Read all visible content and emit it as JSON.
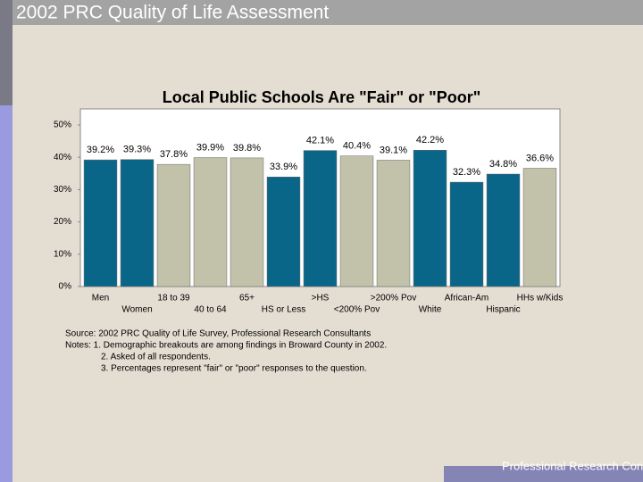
{
  "slide_title": "2002 PRC Quality of Life Assessment",
  "footer": "Professional Research Consultants",
  "chart_data": {
    "type": "bar",
    "title": "Local Public Schools Are \"Fair\" or \"Poor\"",
    "categories": [
      "Men",
      "Women",
      "18 to 39",
      "40 to 64",
      "65+",
      "HS or Less",
      ">HS",
      "<200% Pov",
      ">200% Pov",
      "White",
      "African-Am",
      "Hispanic",
      "HHs w/Kids"
    ],
    "values": [
      39.2,
      39.3,
      37.8,
      39.9,
      39.8,
      33.9,
      42.1,
      40.4,
      39.1,
      42.2,
      32.3,
      34.8,
      36.6
    ],
    "value_labels": [
      "39.2%",
      "39.3%",
      "37.8%",
      "39.9%",
      "39.8%",
      "33.9%",
      "42.1%",
      "40.4%",
      "39.1%",
      "42.2%",
      "32.3%",
      "34.8%",
      "36.6%"
    ],
    "colors": [
      "#0a6689",
      "#0a6689",
      "#c2c2ab",
      "#c2c2ab",
      "#c2c2ab",
      "#0a6689",
      "#0a6689",
      "#c2c2ab",
      "#c2c2ab",
      "#0a6689",
      "#0a6689",
      "#0a6689",
      "#c2c2ab"
    ],
    "ylim": [
      0,
      50
    ],
    "yticks": [
      {
        "value": 0,
        "label": "0%"
      },
      {
        "value": 10,
        "label": "10%"
      },
      {
        "value": 20,
        "label": "20%"
      },
      {
        "value": 30,
        "label": "30%"
      },
      {
        "value": 40,
        "label": "40%"
      },
      {
        "value": 50,
        "label": "50%"
      }
    ],
    "notes": [
      "Source: 2002 PRC Quality of Life Survey, Professional Research Consultants",
      "Notes:   1. Demographic breakouts are among findings in Broward County in 2002.",
      "2. Asked of all respondents.",
      "3. Percentages represent \"fair\" or \"poor\" responses to the question."
    ]
  }
}
